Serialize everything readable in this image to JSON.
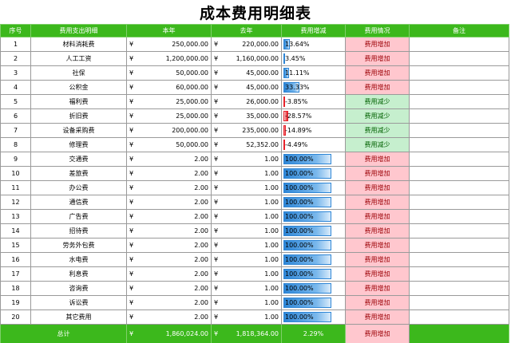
{
  "title": "成本费用明细表",
  "currency_symbol": "¥",
  "headers": [
    "序号",
    "费用支出明细",
    "本年",
    "去年",
    "费用增减",
    "费用情况",
    "备注"
  ],
  "rows": [
    {
      "no": "1",
      "item": "材料消耗费",
      "this_year": "250,000.00",
      "last_year": "220,000.00",
      "change": "13.64%",
      "change_value": 0.1364,
      "status": "费用增加",
      "note": ""
    },
    {
      "no": "2",
      "item": "人工工资",
      "this_year": "1,200,000.00",
      "last_year": "1,160,000.00",
      "change": "3.45%",
      "change_value": 0.0345,
      "status": "费用增加",
      "note": ""
    },
    {
      "no": "3",
      "item": "社保",
      "this_year": "50,000.00",
      "last_year": "45,000.00",
      "change": "11.11%",
      "change_value": 0.1111,
      "status": "费用增加",
      "note": ""
    },
    {
      "no": "4",
      "item": "公积金",
      "this_year": "60,000.00",
      "last_year": "45,000.00",
      "change": "33.33%",
      "change_value": 0.3333,
      "status": "费用增加",
      "note": ""
    },
    {
      "no": "5",
      "item": "福利费",
      "this_year": "25,000.00",
      "last_year": "26,000.00",
      "change": "-3.85%",
      "change_value": -0.0385,
      "status": "费用减少",
      "note": ""
    },
    {
      "no": "6",
      "item": "折旧费",
      "this_year": "25,000.00",
      "last_year": "35,000.00",
      "change": "-28.57%",
      "change_value": -0.2857,
      "status": "费用减少",
      "note": ""
    },
    {
      "no": "7",
      "item": "设备采购费",
      "this_year": "200,000.00",
      "last_year": "235,000.00",
      "change": "-14.89%",
      "change_value": -0.1489,
      "status": "费用减少",
      "note": ""
    },
    {
      "no": "8",
      "item": "修理费",
      "this_year": "50,000.00",
      "last_year": "52,352.00",
      "change": "-4.49%",
      "change_value": -0.0449,
      "status": "费用减少",
      "note": ""
    },
    {
      "no": "9",
      "item": "交通费",
      "this_year": "2.00",
      "last_year": "1.00",
      "change": "100.00%",
      "change_value": 1.0,
      "status": "费用增加",
      "note": ""
    },
    {
      "no": "10",
      "item": "差旅费",
      "this_year": "2.00",
      "last_year": "1.00",
      "change": "100.00%",
      "change_value": 1.0,
      "status": "费用增加",
      "note": ""
    },
    {
      "no": "11",
      "item": "办公费",
      "this_year": "2.00",
      "last_year": "1.00",
      "change": "100.00%",
      "change_value": 1.0,
      "status": "费用增加",
      "note": ""
    },
    {
      "no": "12",
      "item": "通信费",
      "this_year": "2.00",
      "last_year": "1.00",
      "change": "100.00%",
      "change_value": 1.0,
      "status": "费用增加",
      "note": ""
    },
    {
      "no": "13",
      "item": "广告费",
      "this_year": "2.00",
      "last_year": "1.00",
      "change": "100.00%",
      "change_value": 1.0,
      "status": "费用增加",
      "note": ""
    },
    {
      "no": "14",
      "item": "招待费",
      "this_year": "2.00",
      "last_year": "1.00",
      "change": "100.00%",
      "change_value": 1.0,
      "status": "费用增加",
      "note": ""
    },
    {
      "no": "15",
      "item": "劳务外包费",
      "this_year": "2.00",
      "last_year": "1.00",
      "change": "100.00%",
      "change_value": 1.0,
      "status": "费用增加",
      "note": ""
    },
    {
      "no": "16",
      "item": "水电费",
      "this_year": "2.00",
      "last_year": "1.00",
      "change": "100.00%",
      "change_value": 1.0,
      "status": "费用增加",
      "note": ""
    },
    {
      "no": "17",
      "item": "利息费",
      "this_year": "2.00",
      "last_year": "1.00",
      "change": "100.00%",
      "change_value": 1.0,
      "status": "费用增加",
      "note": ""
    },
    {
      "no": "18",
      "item": "咨询费",
      "this_year": "2.00",
      "last_year": "1.00",
      "change": "100.00%",
      "change_value": 1.0,
      "status": "费用增加",
      "note": ""
    },
    {
      "no": "19",
      "item": "诉讼费",
      "this_year": "2.00",
      "last_year": "1.00",
      "change": "100.00%",
      "change_value": 1.0,
      "status": "费用增加",
      "note": ""
    },
    {
      "no": "20",
      "item": "其它费用",
      "this_year": "2.00",
      "last_year": "1.00",
      "change": "100.00%",
      "change_value": 1.0,
      "status": "费用增加",
      "note": ""
    }
  ],
  "total": {
    "label": "总计",
    "this_year": "1,860,024.00",
    "last_year": "1,818,364.00",
    "change": "2.29%",
    "status": "费用增加",
    "note": ""
  },
  "colors": {
    "header_green": "#3cb81c",
    "increase_fill": "#ffc7ce",
    "increase_text": "#9c0006",
    "decrease_fill": "#c6efce",
    "decrease_text": "#006100",
    "bar_positive": "#2e86d6",
    "bar_negative": "#e8222b"
  }
}
